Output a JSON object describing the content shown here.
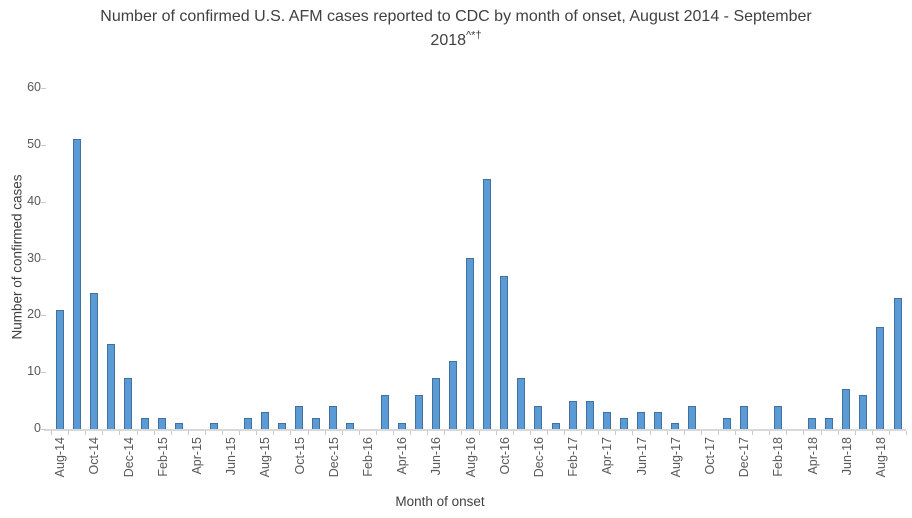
{
  "title": {
    "line1": "Number of confirmed U.S. AFM cases reported to CDC by month of onset, August 2014 - September",
    "line2": "2018",
    "line2_superscript": "^*†"
  },
  "chart_data": {
    "type": "bar",
    "title": "Number of confirmed U.S. AFM cases reported to CDC by month of onset, August 2014 - September 2018^*†",
    "xlabel": "Month of onset",
    "ylabel": "Number of confirmed cases",
    "ylim": [
      0,
      60
    ],
    "yticks": [
      0,
      10,
      20,
      30,
      40,
      50,
      60
    ],
    "x_tick_label_interval": 2,
    "grid": false,
    "legend": "none",
    "categories": [
      "Aug-14",
      "Sep-14",
      "Oct-14",
      "Nov-14",
      "Dec-14",
      "Jan-15",
      "Feb-15",
      "Mar-15",
      "Apr-15",
      "May-15",
      "Jun-15",
      "Jul-15",
      "Aug-15",
      "Sep-15",
      "Oct-15",
      "Nov-15",
      "Dec-15",
      "Jan-16",
      "Feb-16",
      "Mar-16",
      "Apr-16",
      "May-16",
      "Jun-16",
      "Jul-16",
      "Aug-16",
      "Sep-16",
      "Oct-16",
      "Nov-16",
      "Dec-16",
      "Jan-17",
      "Feb-17",
      "Mar-17",
      "Apr-17",
      "May-17",
      "Jun-17",
      "Jul-17",
      "Aug-17",
      "Sep-17",
      "Oct-17",
      "Nov-17",
      "Dec-17",
      "Jan-18",
      "Feb-18",
      "Mar-18",
      "Apr-18",
      "May-18",
      "Jun-18",
      "Jul-18",
      "Aug-18",
      "Sep-18"
    ],
    "values": [
      21,
      51,
      24,
      15,
      9,
      2,
      2,
      1,
      0,
      1,
      0,
      2,
      3,
      1,
      4,
      2,
      4,
      1,
      0,
      6,
      1,
      6,
      9,
      12,
      30,
      44,
      27,
      9,
      4,
      1,
      5,
      5,
      3,
      2,
      3,
      3,
      1,
      4,
      0,
      2,
      4,
      0,
      4,
      0,
      2,
      2,
      7,
      6,
      18,
      23
    ],
    "colors": {
      "bar_fill": "#5B9BD5",
      "bar_border": "#41719C",
      "axis_line": "#D9D9D9",
      "tick": "#C9C9C9",
      "tick_label": "#595959",
      "title_text": "#404040"
    }
  }
}
